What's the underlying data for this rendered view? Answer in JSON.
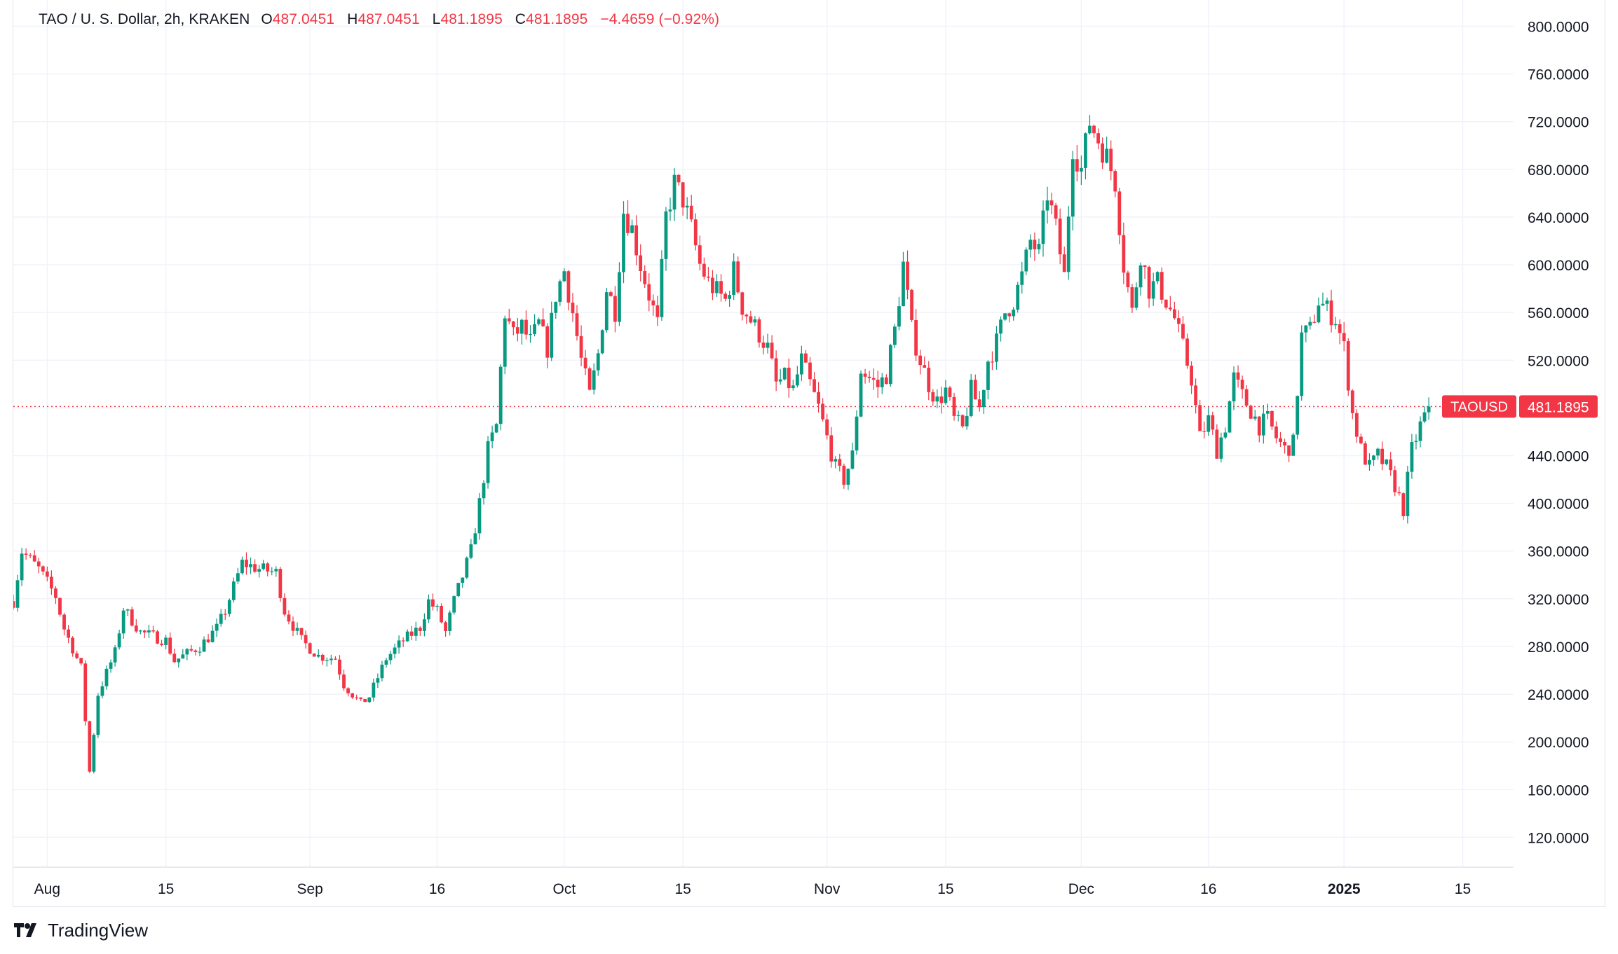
{
  "legend": {
    "symbol": "TAO / U. S. Dollar, 2h, KRAKEN",
    "open_label": "O",
    "open": "487.0451",
    "high_label": "H",
    "high": "487.0451",
    "low_label": "L",
    "low": "481.1895",
    "close_label": "C",
    "close": "481.1895",
    "change": "−4.4659 (−0.92%)"
  },
  "price_tag": {
    "symbol": "TAOUSD",
    "price": "481.1895",
    "value": 481.1895
  },
  "footer": {
    "brand": "TradingView"
  },
  "colors": {
    "up": "#089981",
    "down": "#f23645",
    "grid": "#f0f3fa",
    "axis_text": "#131722",
    "tag": "#f23645"
  },
  "chart_data": {
    "type": "candlestick",
    "title": "TAO / U. S. Dollar, 2h, KRAKEN",
    "ylim": [
      95,
      822
    ],
    "y_ticks": [
      120,
      160,
      200,
      240,
      280,
      320,
      360,
      400,
      440,
      480,
      520,
      560,
      600,
      640,
      680,
      720,
      760,
      800
    ],
    "y_tick_labels": [
      "120.0000",
      "160.0000",
      "200.0000",
      "240.0000",
      "280.0000",
      "320.0000",
      "360.0000",
      "400.0000",
      "440.0000",
      "480.0000",
      "520.0000",
      "560.0000",
      "600.0000",
      "640.0000",
      "680.0000",
      "720.0000",
      "760.0000",
      "800.0000"
    ],
    "x_day_range": [
      -4,
      173
    ],
    "x_ticks": [
      {
        "day": 0,
        "label": "Aug",
        "bold": false
      },
      {
        "day": 14,
        "label": "15",
        "bold": false
      },
      {
        "day": 31,
        "label": "Sep",
        "bold": false
      },
      {
        "day": 46,
        "label": "16",
        "bold": false
      },
      {
        "day": 61,
        "label": "Oct",
        "bold": false
      },
      {
        "day": 75,
        "label": "15",
        "bold": false
      },
      {
        "day": 92,
        "label": "Nov",
        "bold": false
      },
      {
        "day": 106,
        "label": "15",
        "bold": false
      },
      {
        "day": 122,
        "label": "Dec",
        "bold": false
      },
      {
        "day": 137,
        "label": "16",
        "bold": false
      },
      {
        "day": 153,
        "label": "2025",
        "bold": true
      },
      {
        "day": 167,
        "label": "15",
        "bold": false
      }
    ],
    "last_price": 481.1895,
    "price_path": [
      {
        "day": -4,
        "price": 318
      },
      {
        "day": -3,
        "price": 360
      },
      {
        "day": -1,
        "price": 345
      },
      {
        "day": 1,
        "price": 322
      },
      {
        "day": 2,
        "price": 295
      },
      {
        "day": 4,
        "price": 262
      },
      {
        "day": 5,
        "price": 175
      },
      {
        "day": 6,
        "price": 240
      },
      {
        "day": 7,
        "price": 258
      },
      {
        "day": 8,
        "price": 275
      },
      {
        "day": 9,
        "price": 312
      },
      {
        "day": 11,
        "price": 292
      },
      {
        "day": 14,
        "price": 285
      },
      {
        "day": 15,
        "price": 268
      },
      {
        "day": 18,
        "price": 280
      },
      {
        "day": 20,
        "price": 295
      },
      {
        "day": 21,
        "price": 310
      },
      {
        "day": 23,
        "price": 350
      },
      {
        "day": 25,
        "price": 345
      },
      {
        "day": 27,
        "price": 342
      },
      {
        "day": 28,
        "price": 310
      },
      {
        "day": 30,
        "price": 285
      },
      {
        "day": 32,
        "price": 272
      },
      {
        "day": 34,
        "price": 270
      },
      {
        "day": 35,
        "price": 248
      },
      {
        "day": 37,
        "price": 232
      },
      {
        "day": 38,
        "price": 238
      },
      {
        "day": 40,
        "price": 270
      },
      {
        "day": 42,
        "price": 285
      },
      {
        "day": 44,
        "price": 296
      },
      {
        "day": 45,
        "price": 318
      },
      {
        "day": 46,
        "price": 310
      },
      {
        "day": 47,
        "price": 292
      },
      {
        "day": 48,
        "price": 318
      },
      {
        "day": 50,
        "price": 360
      },
      {
        "day": 51,
        "price": 400
      },
      {
        "day": 52,
        "price": 445
      },
      {
        "day": 53,
        "price": 465
      },
      {
        "day": 54,
        "price": 560
      },
      {
        "day": 55,
        "price": 540
      },
      {
        "day": 56,
        "price": 548
      },
      {
        "day": 57,
        "price": 535
      },
      {
        "day": 58,
        "price": 550
      },
      {
        "day": 59,
        "price": 530
      },
      {
        "day": 60,
        "price": 575
      },
      {
        "day": 61,
        "price": 595
      },
      {
        "day": 62,
        "price": 560
      },
      {
        "day": 63,
        "price": 520
      },
      {
        "day": 64,
        "price": 490
      },
      {
        "day": 65,
        "price": 525
      },
      {
        "day": 66,
        "price": 580
      },
      {
        "day": 67,
        "price": 562
      },
      {
        "day": 68,
        "price": 645
      },
      {
        "day": 69,
        "price": 630
      },
      {
        "day": 70,
        "price": 600
      },
      {
        "day": 71,
        "price": 575
      },
      {
        "day": 72,
        "price": 550
      },
      {
        "day": 73,
        "price": 640
      },
      {
        "day": 74,
        "price": 668
      },
      {
        "day": 75,
        "price": 655
      },
      {
        "day": 76,
        "price": 630
      },
      {
        "day": 77,
        "price": 600
      },
      {
        "day": 78,
        "price": 585
      },
      {
        "day": 80,
        "price": 570
      },
      {
        "day": 81,
        "price": 595
      },
      {
        "day": 82,
        "price": 565
      },
      {
        "day": 84,
        "price": 542
      },
      {
        "day": 85,
        "price": 530
      },
      {
        "day": 86,
        "price": 500
      },
      {
        "day": 87,
        "price": 505
      },
      {
        "day": 88,
        "price": 495
      },
      {
        "day": 89,
        "price": 520
      },
      {
        "day": 90,
        "price": 500
      },
      {
        "day": 91,
        "price": 480
      },
      {
        "day": 92,
        "price": 455
      },
      {
        "day": 93,
        "price": 430
      },
      {
        "day": 94,
        "price": 420
      },
      {
        "day": 95,
        "price": 440
      },
      {
        "day": 96,
        "price": 512
      },
      {
        "day": 97,
        "price": 505
      },
      {
        "day": 98,
        "price": 498
      },
      {
        "day": 99,
        "price": 508
      },
      {
        "day": 100,
        "price": 545
      },
      {
        "day": 101,
        "price": 600
      },
      {
        "day": 102,
        "price": 545
      },
      {
        "day": 103,
        "price": 520
      },
      {
        "day": 104,
        "price": 500
      },
      {
        "day": 105,
        "price": 485
      },
      {
        "day": 106,
        "price": 495
      },
      {
        "day": 107,
        "price": 470
      },
      {
        "day": 108,
        "price": 462
      },
      {
        "day": 109,
        "price": 495
      },
      {
        "day": 110,
        "price": 480
      },
      {
        "day": 111,
        "price": 520
      },
      {
        "day": 112,
        "price": 535
      },
      {
        "day": 113,
        "price": 560
      },
      {
        "day": 114,
        "price": 570
      },
      {
        "day": 115,
        "price": 590
      },
      {
        "day": 116,
        "price": 620
      },
      {
        "day": 117,
        "price": 610
      },
      {
        "day": 118,
        "price": 660
      },
      {
        "day": 119,
        "price": 630
      },
      {
        "day": 120,
        "price": 590
      },
      {
        "day": 121,
        "price": 700
      },
      {
        "day": 122,
        "price": 680
      },
      {
        "day": 123,
        "price": 720
      },
      {
        "day": 124,
        "price": 705
      },
      {
        "day": 125,
        "price": 690
      },
      {
        "day": 126,
        "price": 670
      },
      {
        "day": 127,
        "price": 600
      },
      {
        "day": 128,
        "price": 560
      },
      {
        "day": 129,
        "price": 610
      },
      {
        "day": 130,
        "price": 580
      },
      {
        "day": 131,
        "price": 585
      },
      {
        "day": 132,
        "price": 570
      },
      {
        "day": 133,
        "price": 555
      },
      {
        "day": 134,
        "price": 530
      },
      {
        "day": 135,
        "price": 505
      },
      {
        "day": 136,
        "price": 455
      },
      {
        "day": 137,
        "price": 470
      },
      {
        "day": 138,
        "price": 445
      },
      {
        "day": 139,
        "price": 465
      },
      {
        "day": 140,
        "price": 505
      },
      {
        "day": 141,
        "price": 490
      },
      {
        "day": 142,
        "price": 478
      },
      {
        "day": 143,
        "price": 465
      },
      {
        "day": 144,
        "price": 470
      },
      {
        "day": 145,
        "price": 455
      },
      {
        "day": 146,
        "price": 445
      },
      {
        "day": 147,
        "price": 450
      },
      {
        "day": 148,
        "price": 540
      },
      {
        "day": 149,
        "price": 545
      },
      {
        "day": 150,
        "price": 570
      },
      {
        "day": 151,
        "price": 562
      },
      {
        "day": 152,
        "price": 555
      },
      {
        "day": 153,
        "price": 530
      },
      {
        "day": 154,
        "price": 475
      },
      {
        "day": 155,
        "price": 445
      },
      {
        "day": 156,
        "price": 430
      },
      {
        "day": 157,
        "price": 440
      },
      {
        "day": 158,
        "price": 430
      },
      {
        "day": 159,
        "price": 415
      },
      {
        "day": 160,
        "price": 395
      },
      {
        "day": 161,
        "price": 445
      },
      {
        "day": 162,
        "price": 465
      },
      {
        "day": 163,
        "price": 481
      }
    ]
  }
}
